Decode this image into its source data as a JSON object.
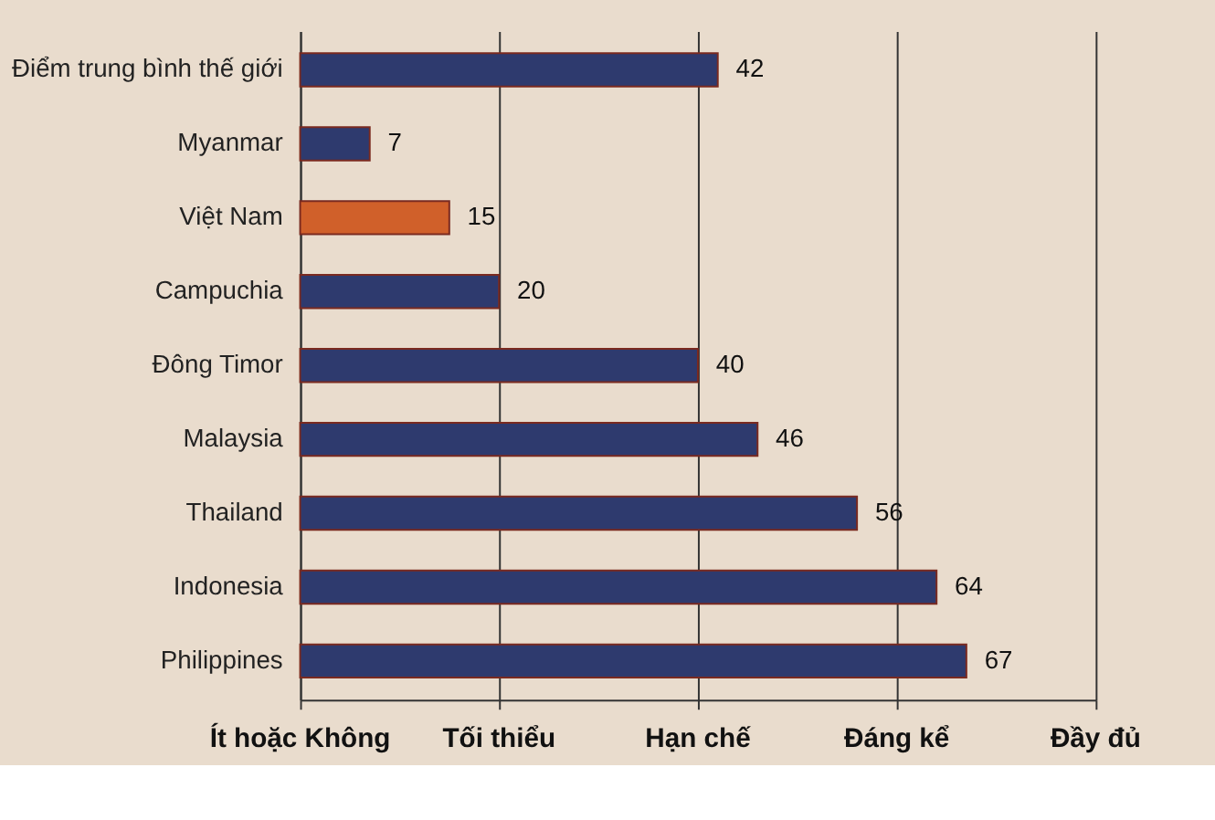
{
  "chart_data": {
    "type": "bar",
    "orientation": "horizontal",
    "categories": [
      "Điểm trung bình thế giới",
      "Myanmar",
      "Việt Nam",
      "Campuchia",
      "Đông Timor",
      "Malaysia",
      "Thailand",
      "Indonesia",
      "Philippines"
    ],
    "values": [
      42,
      7,
      15,
      20,
      40,
      46,
      56,
      64,
      67
    ],
    "colors": [
      "#2e3a6e",
      "#2e3a6e",
      "#d0602a",
      "#2e3a6e",
      "#2e3a6e",
      "#2e3a6e",
      "#2e3a6e",
      "#2e3a6e",
      "#2e3a6e"
    ],
    "xlim": [
      0,
      80
    ],
    "xticks": [
      {
        "value": 0,
        "label": null
      },
      {
        "value": 20,
        "label": null
      },
      {
        "value": 40,
        "label": null
      },
      {
        "value": 60,
        "label": null
      },
      {
        "value": 80,
        "label": null
      }
    ],
    "annotations": [
      "Ít hoặc Không",
      "Tối thiểu",
      "Hạn chế",
      "Đáng kể",
      "Đầy đủ"
    ],
    "grid": "x",
    "data_labels": true
  }
}
